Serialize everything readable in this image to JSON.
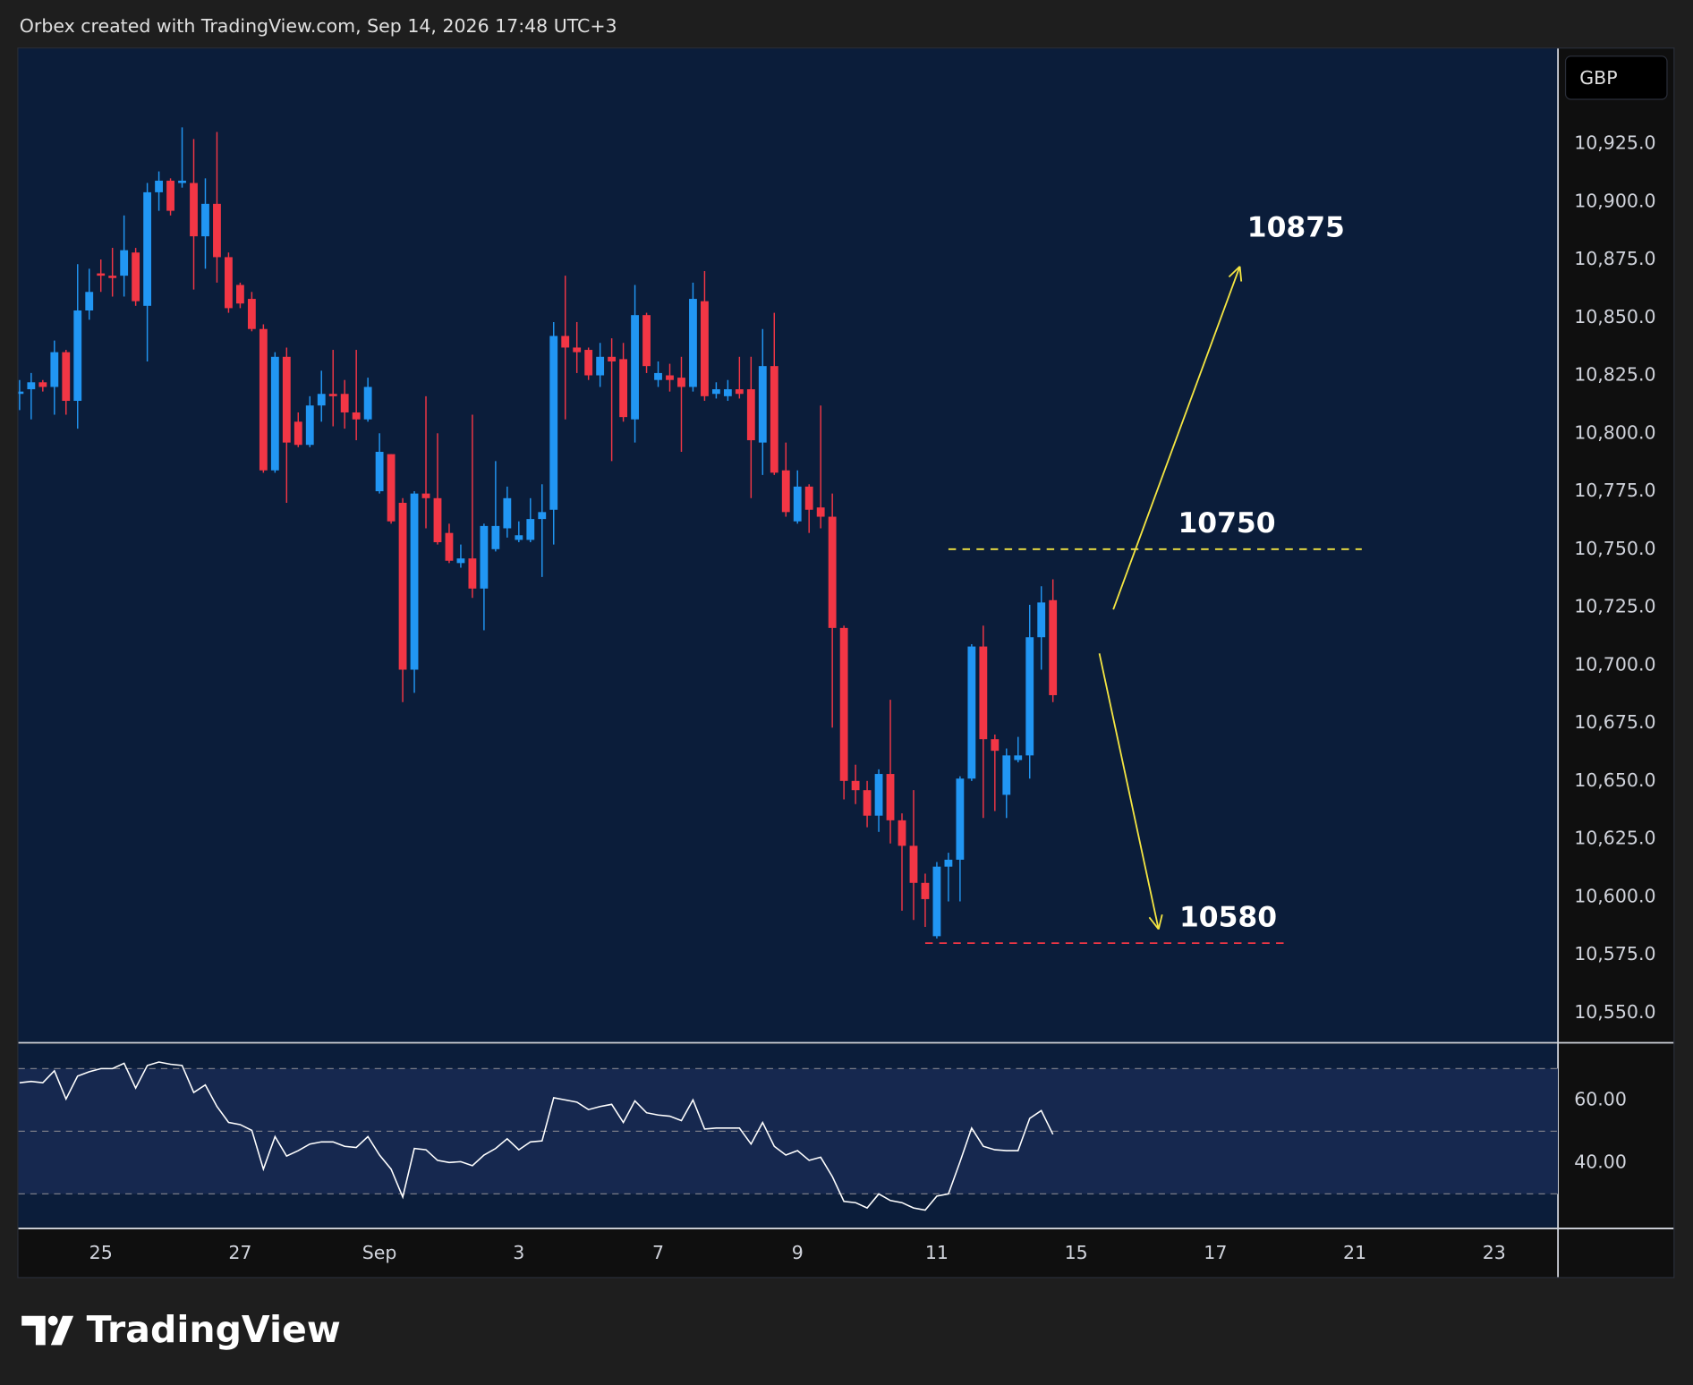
{
  "header": "Orbex created with TradingView.com, Sep 14, 2026 17:48 UTC+3",
  "currency": "GBP",
  "brand": "TradingView",
  "chart_data": {
    "type": "candlestick",
    "up_color": "#2196f3",
    "down_color": "#f23645",
    "open": [
      10817,
      10819,
      10822,
      10820,
      10835,
      10814,
      10853,
      10869,
      10868,
      10868,
      10878,
      10855,
      10904,
      10909,
      10908,
      10908,
      10885,
      10899,
      10876,
      10864,
      10858,
      10845,
      10784,
      10833,
      10805,
      10795,
      10812,
      10817,
      10817,
      10809,
      10806,
      10775,
      10791,
      10770,
      10698,
      10774,
      10772,
      10757,
      10744,
      10746,
      10733,
      10750,
      10759,
      10754,
      10754,
      10763,
      10767,
      10842,
      10837,
      10836,
      10825,
      10833,
      10832,
      10806,
      10851,
      10823,
      10825,
      10824,
      10820,
      10857,
      10817,
      10816,
      10819,
      10819,
      10796,
      10829,
      10784,
      10762,
      10777,
      10768,
      10764,
      10716,
      10650,
      10646,
      10635,
      10653,
      10633,
      10622,
      10606,
      10583,
      10613,
      10616,
      10651,
      10708,
      10668,
      10644,
      10659,
      10661,
      10712,
      10728
    ],
    "high": [
      10823,
      10826,
      10823,
      10840,
      10836,
      10873,
      10871,
      10875,
      10880,
      10894,
      10880,
      10908,
      10913,
      10910,
      10932,
      10927,
      10910,
      10930,
      10878,
      10865,
      10861,
      10847,
      10835,
      10837,
      10809,
      10816,
      10827,
      10836,
      10823,
      10836,
      10824,
      10800,
      10791,
      10772,
      10775,
      10816,
      10800,
      10761,
      10752,
      10808,
      10761,
      10788,
      10777,
      10762,
      10772,
      10778,
      10848,
      10868,
      10848,
      10837,
      10839,
      10841,
      10839,
      10864,
      10852,
      10831,
      10830,
      10833,
      10865,
      10870,
      10822,
      10823,
      10833,
      10833,
      10845,
      10852,
      10796,
      10784,
      10778,
      10812,
      10774,
      10717,
      10657,
      10650,
      10655,
      10685,
      10636,
      10646,
      10610,
      10615,
      10619,
      10652,
      10709,
      10717,
      10670,
      10664,
      10669,
      10726,
      10734,
      10737
    ],
    "low": [
      10810,
      10806,
      10818,
      10808,
      10808,
      10802,
      10849,
      10861,
      10859,
      10859,
      10855,
      10831,
      10896,
      10894,
      10906,
      10862,
      10871,
      10865,
      10852,
      10854,
      10844,
      10783,
      10783,
      10770,
      10794,
      10794,
      10805,
      10803,
      10802,
      10797,
      10805,
      10774,
      10761,
      10684,
      10688,
      10759,
      10752,
      10744,
      10742,
      10729,
      10715,
      10749,
      10755,
      10753,
      10753,
      10738,
      10752,
      10806,
      10826,
      10823,
      10820,
      10788,
      10805,
      10796,
      10826,
      10820,
      10818,
      10792,
      10818,
      10814,
      10815,
      10814,
      10815,
      10772,
      10782,
      10782,
      10764,
      10761,
      10757,
      10759,
      10673,
      10642,
      10640,
      10630,
      10628,
      10623,
      10594,
      10590,
      10587,
      10582,
      10598,
      10598,
      10650,
      10634,
      10637,
      10634,
      10658,
      10651,
      10698,
      10684
    ],
    "close": [
      10818,
      10822,
      10820,
      10835,
      10814,
      10853,
      10861,
      10868,
      10867,
      10879,
      10857,
      10904,
      10909,
      10896,
      10909,
      10885,
      10899,
      10876,
      10854,
      10856,
      10845,
      10784,
      10833,
      10796,
      10795,
      10812,
      10817,
      10816,
      10809,
      10806,
      10820,
      10792,
      10762,
      10698,
      10774,
      10772,
      10753,
      10745,
      10746,
      10733,
      10760,
      10760,
      10772,
      10756,
      10763,
      10766,
      10842,
      10837,
      10835,
      10825,
      10833,
      10831,
      10807,
      10851,
      10829,
      10826,
      10823,
      10820,
      10858,
      10816,
      10819,
      10819,
      10817,
      10797,
      10829,
      10783,
      10766,
      10777,
      10767,
      10764,
      10716,
      10650,
      10646,
      10635,
      10653,
      10633,
      10622,
      10606,
      10599,
      10613,
      10616,
      10651,
      10708,
      10668,
      10663,
      10661,
      10661,
      10712,
      10727,
      10687
    ],
    "ylim": [
      10537,
      10966
    ],
    "yticks": [
      {
        "value": 10550,
        "label": "10,550.0"
      },
      {
        "value": 10575,
        "label": "10,575.0"
      },
      {
        "value": 10600,
        "label": "10,600.0"
      },
      {
        "value": 10625,
        "label": "10,625.0"
      },
      {
        "value": 10650,
        "label": "10,650.0"
      },
      {
        "value": 10675,
        "label": "10,675.0"
      },
      {
        "value": 10700,
        "label": "10,700.0"
      },
      {
        "value": 10725,
        "label": "10,725.0"
      },
      {
        "value": 10750,
        "label": "10,750.0"
      },
      {
        "value": 10775,
        "label": "10,775.0"
      },
      {
        "value": 10800,
        "label": "10,800.0"
      },
      {
        "value": 10825,
        "label": "10,825.0"
      },
      {
        "value": 10850,
        "label": "10,850.0"
      },
      {
        "value": 10875,
        "label": "10,875.0"
      },
      {
        "value": 10900,
        "label": "10,900.0"
      },
      {
        "value": 10925,
        "label": "10,925.0"
      }
    ],
    "xlim": [
      -0.1,
      132.5
    ],
    "xticks": [
      {
        "value": 7,
        "label": "25"
      },
      {
        "value": 19,
        "label": "27"
      },
      {
        "value": 31,
        "label": "Sep"
      },
      {
        "value": 43,
        "label": "3"
      },
      {
        "value": 55,
        "label": "7"
      },
      {
        "value": 67,
        "label": "9"
      },
      {
        "value": 79,
        "label": "11"
      },
      {
        "value": 91,
        "label": "15"
      },
      {
        "value": 103,
        "label": "17"
      },
      {
        "value": 115,
        "label": "21"
      },
      {
        "value": 127,
        "label": "23"
      }
    ],
    "levels": [
      {
        "value": 10750,
        "color": "#f5e642",
        "x": [
          80,
          115.6
        ]
      },
      {
        "value": 10580,
        "color": "#f23645",
        "x": [
          78,
          109.3
        ]
      }
    ],
    "arrows": [
      {
        "from": {
          "x": 94.2,
          "y": 10724
        },
        "to": {
          "x": 105.1,
          "y": 10872
        },
        "color": "#f5e642",
        "label": 10875
      },
      {
        "from": {
          "x": 93,
          "y": 10705
        },
        "to": {
          "x": 98.1,
          "y": 10586
        },
        "color": "#f5e642"
      }
    ],
    "rsi": {
      "type": "line",
      "color": "#ffffff",
      "values": [
        65.5,
        65.9,
        65.5,
        69.3,
        60.3,
        67.6,
        69.0,
        70.0,
        70.0,
        71.7,
        63.8,
        71.0,
        72.1,
        71.4,
        71.0,
        62.4,
        64.8,
        57.9,
        52.8,
        52.1,
        50.3,
        37.9,
        48.3,
        42.1,
        43.8,
        45.9,
        46.6,
        46.6,
        45.2,
        44.8,
        48.3,
        42.4,
        37.9,
        29.0,
        44.5,
        44.1,
        40.7,
        40.0,
        40.3,
        39.0,
        42.4,
        44.5,
        47.6,
        44.1,
        46.6,
        46.9,
        60.7,
        60.0,
        59.3,
        56.9,
        57.9,
        58.6,
        52.8,
        59.7,
        55.9,
        55.2,
        54.8,
        53.4,
        60.0,
        50.7,
        51.0,
        51.0,
        51.0,
        45.9,
        52.8,
        45.2,
        42.4,
        43.8,
        40.7,
        41.7,
        35.5,
        27.6,
        27.2,
        25.5,
        30.0,
        27.9,
        27.2,
        25.5,
        24.8,
        29.3,
        30.0,
        40.3,
        51.0,
        45.2,
        44.1,
        43.8,
        43.8,
        54.1,
        56.6,
        49.0
      ],
      "ylim": [
        19.3,
        77.9
      ],
      "yticks": [
        {
          "value": 60,
          "label": "60.00"
        },
        {
          "value": 40,
          "label": "40.00"
        }
      ],
      "bands": [
        70,
        50,
        30
      ]
    }
  }
}
